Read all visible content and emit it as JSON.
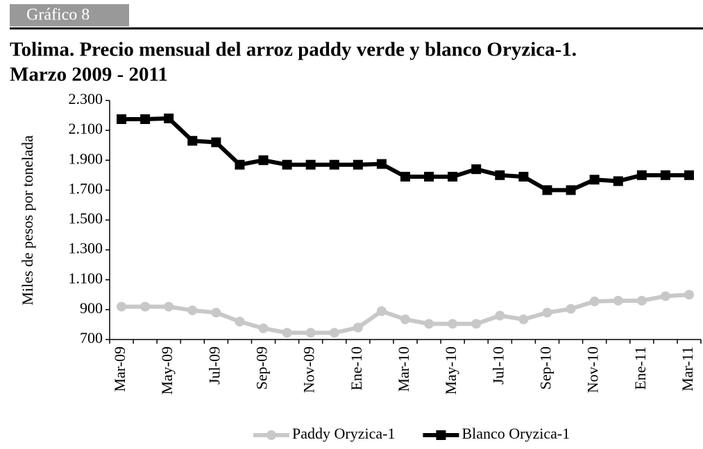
{
  "header": "Gráfico 8",
  "chart_data": {
    "type": "line",
    "title": "Tolima. Precio mensual del arroz paddy verde y blanco Oryzica-1.",
    "subtitle": "Marzo 2009 - 2011",
    "y_label": "Miles de pesos por tonelada",
    "categories": [
      "Mar-09",
      null,
      "May-09",
      null,
      "Jul-09",
      null,
      "Sep-09",
      null,
      "Nov-09",
      null,
      "Ene-10",
      null,
      "Mar-10",
      null,
      "May-10",
      null,
      "Jul-10",
      null,
      "Sep-10",
      null,
      "Nov-10",
      null,
      "Ene-11",
      null,
      "Mar-11"
    ],
    "series": [
      {
        "name": "Paddy Oryzica-1",
        "color": "#c8c8c8",
        "marker": "circle",
        "values": [
          920,
          920,
          920,
          895,
          880,
          820,
          775,
          745,
          745,
          745,
          780,
          890,
          835,
          805,
          805,
          805,
          860,
          835,
          880,
          905,
          955,
          960,
          960,
          990,
          1000
        ]
      },
      {
        "name": "Blanco Oryzica-1",
        "color": "#000000",
        "marker": "square",
        "values": [
          2175,
          2175,
          2180,
          2030,
          2020,
          1870,
          1900,
          1870,
          1870,
          1870,
          1870,
          1875,
          1790,
          1790,
          1790,
          1840,
          1800,
          1790,
          1700,
          1700,
          1770,
          1760,
          1800,
          1800,
          1800
        ]
      }
    ],
    "ylim": [
      700,
      2300
    ],
    "yticks": [
      {
        "value": 700,
        "label": "700"
      },
      {
        "value": 900,
        "label": "900"
      },
      {
        "value": 1100,
        "label": "1.100"
      },
      {
        "value": 1300,
        "label": "1.300"
      },
      {
        "value": 1500,
        "label": "1.500"
      },
      {
        "value": 1700,
        "label": "1.700"
      },
      {
        "value": 1900,
        "label": "1.900"
      },
      {
        "value": 2100,
        "label": "2.100"
      },
      {
        "value": 2300,
        "label": "2.300"
      }
    ],
    "grid": false,
    "legend": "bottom"
  }
}
